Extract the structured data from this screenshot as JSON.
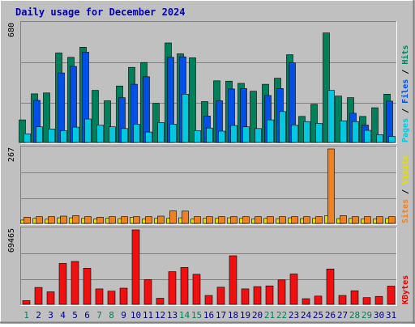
{
  "chart_data": {
    "type": "bar",
    "title": "Daily usage for December 2024",
    "categories": [
      "1",
      "2",
      "3",
      "4",
      "5",
      "6",
      "7",
      "8",
      "9",
      "10",
      "11",
      "12",
      "13",
      "14",
      "15",
      "16",
      "17",
      "18",
      "19",
      "20",
      "21",
      "22",
      "23",
      "24",
      "25",
      "26",
      "27",
      "28",
      "29",
      "30",
      "31"
    ],
    "weekend_days": [
      1,
      7,
      8,
      14,
      15,
      21,
      22,
      28,
      29
    ],
    "panels": [
      {
        "id": "hits",
        "ymax_label": "680",
        "ylim": [
          0,
          680
        ],
        "side_labels": [
          {
            "text": "Pages",
            "color": "#00c8e0"
          },
          {
            "text": " / ",
            "color": "#000000"
          },
          {
            "text": "Files",
            "color": "#0050e8"
          },
          {
            "text": " / ",
            "color": "#000000"
          },
          {
            "text": "Hits",
            "color": "#00805a"
          }
        ],
        "series": [
          {
            "name": "Hits",
            "color": "#00805a",
            "values": [
              130,
              280,
              285,
              515,
              490,
              548,
              300,
              240,
              325,
              432,
              460,
              225,
              573,
              510,
              487,
              235,
              355,
              353,
              340,
              295,
              335,
              370,
              505,
              150,
              220,
              630,
              267,
              258,
              150,
              200,
              278
            ]
          },
          {
            "name": "Files",
            "color": "#0050e8",
            "values": [
              0,
              242,
              0,
              400,
              438,
              520,
              0,
              0,
              258,
              335,
              378,
              0,
              490,
              493,
              0,
              152,
              240,
              308,
              310,
              0,
              270,
              310,
              458,
              0,
              0,
              0,
              0,
              168,
              100,
              0,
              238
            ]
          },
          {
            "name": "Pages",
            "color": "#00c8e0",
            "values": [
              50,
              90,
              78,
              68,
              88,
              135,
              100,
              90,
              80,
              105,
              60,
              115,
              105,
              278,
              68,
              83,
              65,
              98,
              90,
              80,
              130,
              178,
              100,
              120,
              110,
              300,
              125,
              120,
              70,
              45,
              35
            ]
          }
        ]
      },
      {
        "id": "sites",
        "ymax_label": "267",
        "ylim": [
          0,
          267
        ],
        "side_labels": [
          {
            "text": "Sites",
            "color": "#f08020"
          },
          {
            "text": " / ",
            "color": "#000000"
          },
          {
            "text": "Visits",
            "color": "#e0e000"
          }
        ],
        "series": [
          {
            "name": "Visits",
            "color": "#e0e000",
            "values": [
              12,
              18,
              15,
              20,
              20,
              18,
              16,
              19,
              17,
              22,
              16,
              18,
              18,
              20,
              16,
              19,
              18,
              20,
              18,
              16,
              18,
              17,
              20,
              17,
              18,
              28,
              17,
              18,
              16,
              16,
              18
            ]
          },
          {
            "name": "Sites",
            "color": "#f08020",
            "values": [
              22,
              24,
              24,
              26,
              28,
              24,
              22,
              24,
              24,
              24,
              24,
              26,
              45,
              44,
              24,
              24,
              24,
              24,
              24,
              24,
              24,
              24,
              24,
              24,
              24,
              267,
              28,
              24,
              24,
              24,
              24
            ]
          }
        ]
      },
      {
        "id": "kbytes",
        "ymax_label": "69465",
        "ylim": [
          0,
          69465
        ],
        "side_labels": [
          {
            "text": "KBytes",
            "color": "#e00000"
          }
        ],
        "series": [
          {
            "name": "KBytes",
            "color": "#f01010",
            "values": [
              3500,
              15800,
              11700,
              38200,
              40000,
              33700,
              14400,
              12300,
              15100,
              69465,
              23000,
              5700,
              30500,
              34400,
              28000,
              8300,
              16000,
              45300,
              14400,
              16500,
              17200,
              22800,
              28300,
              5300,
              7700,
              33000,
              8300,
              12700,
              6300,
              7400,
              17000
            ]
          }
        ]
      }
    ]
  }
}
